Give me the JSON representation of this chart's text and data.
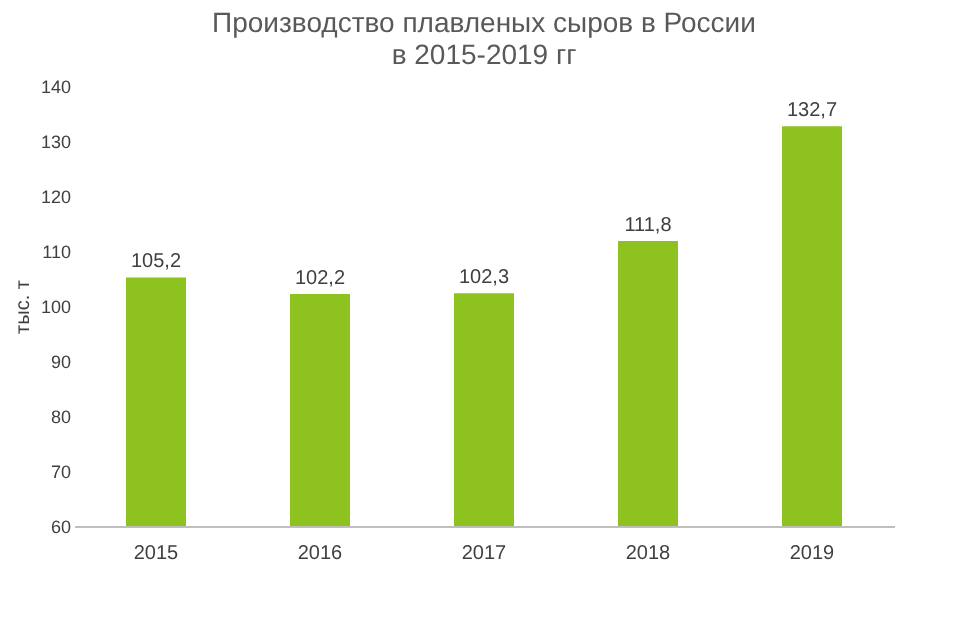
{
  "chart_data": {
    "type": "bar",
    "title": "Производство плавленых сыров в России\nв 2015-2019 гг",
    "ylabel": "тыс. т",
    "categories": [
      "2015",
      "2016",
      "2017",
      "2018",
      "2019"
    ],
    "values": [
      105.2,
      102.2,
      102.3,
      111.8,
      132.7
    ],
    "value_labels": [
      "105,2",
      "102,2",
      "102,3",
      "111,8",
      "132,7"
    ],
    "color": "#8dc21f",
    "ylim": [
      60,
      140
    ],
    "yticks": [
      60,
      70,
      80,
      90,
      100,
      110,
      120,
      130,
      140
    ],
    "grid": false
  }
}
